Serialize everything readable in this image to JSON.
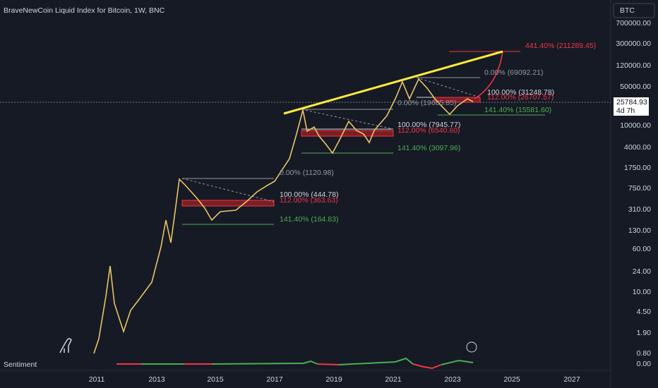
{
  "header": {
    "title": "BraveNewCoin Liquid Index for Bitcoin, 1W, BNC",
    "symbol_button": "BTC"
  },
  "price_axis": {
    "labels": [
      "700000.00",
      "300000.00",
      "120000.00",
      "50000.00",
      "10000.00",
      "4000.00",
      "1750.00",
      "750.00",
      "310.00",
      "130.00",
      "60.00",
      "24.00",
      "10.00",
      "4.50",
      "1.90",
      "0.80",
      "0.00"
    ],
    "last_price": "25784.93",
    "countdown": "4d 7h"
  },
  "time_axis": {
    "labels": [
      "2011",
      "2013",
      "2015",
      "2017",
      "2019",
      "2021",
      "2023",
      "2025",
      "2027"
    ]
  },
  "fib_labels": [
    "441.40% (211289.45)",
    "0.00% (69092.21)",
    "100.00% (31248.78)",
    "112.00% (26707.57)",
    "0.00% (19685.85)",
    "141.40% (15581.60)",
    "100.00% (7945.77)",
    "112.00% (6540.60)",
    "141.40% (3097.96)",
    "0.00% (1120.98)",
    "100.00% (444.78)",
    "112.00% (363.63)",
    "141.40% (164.83)"
  ],
  "indicator": {
    "name": "Sentiment"
  }
}
